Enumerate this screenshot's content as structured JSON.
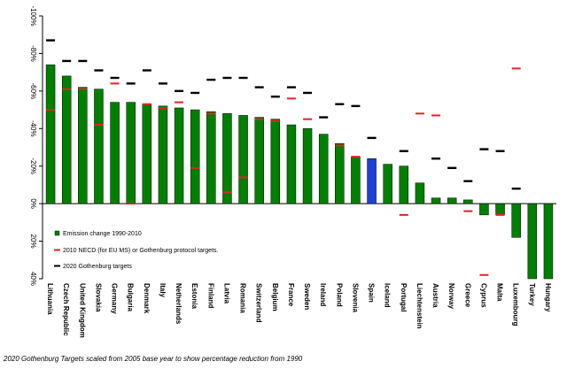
{
  "chart_data": {
    "type": "bar",
    "title": "",
    "xlabel": "",
    "ylabel": "",
    "ylim": [
      -100,
      40
    ],
    "yticks": [
      {
        "value": -100,
        "label": "-100%"
      },
      {
        "value": -80,
        "label": "-80%"
      },
      {
        "value": -60,
        "label": "-60%"
      },
      {
        "value": -40,
        "label": "-40%"
      },
      {
        "value": -20,
        "label": "-20%"
      },
      {
        "value": 0,
        "label": "0%"
      },
      {
        "value": 20,
        "label": "20%"
      },
      {
        "value": 40,
        "label": "40%"
      }
    ],
    "categories": [
      "Lithuania",
      "Czech Republic",
      "United Kingdom",
      "Slovakia",
      "Germany",
      "Bulgaria",
      "Denmark",
      "Italy",
      "Netherlands",
      "Estonia",
      "Finland",
      "Latvia",
      "Romania",
      "Switzerland",
      "Belgium",
      "France",
      "Sweden",
      "Ireland",
      "Poland",
      "Slovenia",
      "Spain",
      "Iceland",
      "Portugal",
      "Liechtenstein",
      "Austria",
      "Norway",
      "Greece",
      "Cyprus",
      "Malta",
      "Luxembourg",
      "Turkey",
      "Hungary"
    ],
    "highlight_category": "Spain",
    "series": [
      {
        "name": "Emission change 1990-2010",
        "kind": "bar",
        "color": "#008000",
        "highlight_color": "#1f3fd6",
        "values": [
          -74,
          -68,
          -62,
          -61,
          -54,
          -54,
          -53,
          -52,
          -51,
          -50,
          -49,
          -48,
          -47,
          -46,
          -45,
          -42,
          -40,
          -37,
          -32,
          -25,
          -24,
          -21,
          -20,
          -11,
          -3,
          -3,
          -2,
          6,
          6,
          18,
          40,
          40
        ]
      },
      {
        "name": "2010 NECD (for EU MS) or Gothenburg protocol targets.",
        "kind": "marker",
        "color": "#e32222",
        "values": [
          -50,
          -61,
          -61,
          -42,
          -64,
          0,
          -53,
          -51,
          -54,
          -19,
          -48,
          -6,
          -14,
          -45,
          -44,
          -56,
          -45,
          null,
          -31,
          -25,
          -35,
          null,
          6,
          -48,
          -47,
          -19,
          4,
          38,
          6,
          -72,
          null,
          null
        ]
      },
      {
        "name": "2020 Gothenburg targets",
        "kind": "marker",
        "color": "#000000",
        "values": [
          -87,
          -76,
          -76,
          -71,
          -67,
          -64,
          -71,
          -64,
          -60,
          -59,
          -66,
          -67,
          -67,
          -62,
          -57,
          -62,
          -59,
          -46,
          -53,
          -52,
          -35,
          null,
          -28,
          null,
          -24,
          -19,
          -12,
          -29,
          -28,
          -8,
          null,
          null
        ]
      }
    ],
    "legend": {
      "placement": "bottom-left"
    },
    "grid": false,
    "caption": "2020 Gothenburg Targets scaled  from 2005 base year to show  percentage reduction from 1990"
  }
}
